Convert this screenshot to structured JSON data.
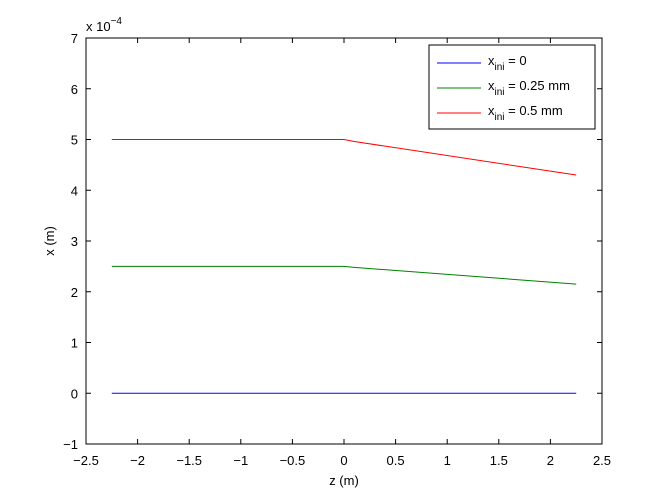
{
  "chart_data": {
    "type": "line",
    "title": "",
    "xlabel": "z (m)",
    "ylabel": "x (m)",
    "y_multiplier_label": {
      "base": "x 10",
      "exponent": "−4"
    },
    "xlim": [
      -2.5,
      2.5
    ],
    "ylim": [
      -1,
      7
    ],
    "x_ticks": [
      -2.5,
      -2,
      -1.5,
      -1,
      -0.5,
      0,
      0.5,
      1,
      1.5,
      2,
      2.5
    ],
    "x_tick_labels": [
      "−2.5",
      "−2",
      "−1.5",
      "−1",
      "−0.5",
      "0",
      "0.5",
      "1",
      "1.5",
      "2",
      "2.5"
    ],
    "y_ticks": [
      -1,
      0,
      1,
      2,
      3,
      4,
      5,
      6,
      7
    ],
    "y_tick_labels": [
      "−1",
      "0",
      "1",
      "2",
      "3",
      "4",
      "5",
      "6",
      "7"
    ],
    "grid": false,
    "legend_position": "top-right",
    "series": [
      {
        "name": {
          "main": "x",
          "sub": "ini",
          "rest": " = 0"
        },
        "color": "#0000ff",
        "x": [
          -2.25,
          0.0,
          0.1,
          2.25
        ],
        "y": [
          0.0,
          0.0,
          0.0,
          0.0
        ]
      },
      {
        "name": {
          "main": "x",
          "sub": "ini",
          "rest": " = 0.25 mm"
        },
        "color": "#008000",
        "x": [
          -2.25,
          0.0,
          0.1,
          2.25
        ],
        "y": [
          2.5,
          2.5,
          2.48,
          2.15
        ]
      },
      {
        "name": {
          "main": "x",
          "sub": "ini",
          "rest": " = 0.5 mm"
        },
        "color": "#ff0000",
        "x": [
          -2.25,
          0.0,
          0.1,
          2.25
        ],
        "y": [
          5.0,
          5.0,
          4.96,
          4.3
        ]
      }
    ]
  }
}
